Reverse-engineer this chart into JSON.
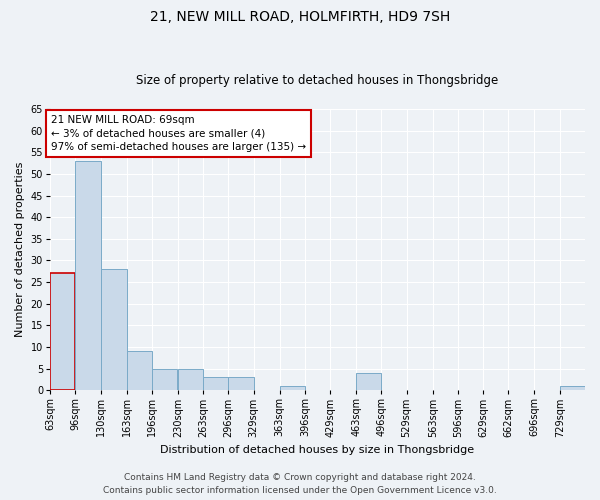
{
  "title": "21, NEW MILL ROAD, HOLMFIRTH, HD9 7SH",
  "subtitle": "Size of property relative to detached houses in Thongsbridge",
  "xlabel": "Distribution of detached houses by size in Thongsbridge",
  "ylabel": "Number of detached properties",
  "footer_line1": "Contains HM Land Registry data © Crown copyright and database right 2024.",
  "footer_line2": "Contains public sector information licensed under the Open Government Licence v3.0.",
  "bins": [
    63,
    96,
    130,
    163,
    196,
    230,
    263,
    296,
    329,
    363,
    396,
    429,
    463,
    496,
    529,
    563,
    596,
    629,
    662,
    696,
    729
  ],
  "values": [
    27,
    53,
    28,
    9,
    5,
    5,
    3,
    3,
    0,
    1,
    0,
    0,
    4,
    0,
    0,
    0,
    0,
    0,
    0,
    0,
    1
  ],
  "bar_color": "#c9d9e9",
  "bar_edge_color": "#7aaac8",
  "highlight_bar_edge_color": "#cc0000",
  "annotation_text": "21 NEW MILL ROAD: 69sqm\n← 3% of detached houses are smaller (4)\n97% of semi-detached houses are larger (135) →",
  "annotation_box_color": "#ffffff",
  "annotation_box_edge_color": "#cc0000",
  "annotation_fontsize": 7.5,
  "ylim": [
    0,
    65
  ],
  "yticks": [
    0,
    5,
    10,
    15,
    20,
    25,
    30,
    35,
    40,
    45,
    50,
    55,
    60,
    65
  ],
  "title_fontsize": 10,
  "subtitle_fontsize": 8.5,
  "xlabel_fontsize": 8,
  "ylabel_fontsize": 8,
  "tick_fontsize": 7,
  "footer_fontsize": 6.5,
  "background_color": "#eef2f6",
  "grid_color": "#ffffff",
  "bin_width": 33
}
